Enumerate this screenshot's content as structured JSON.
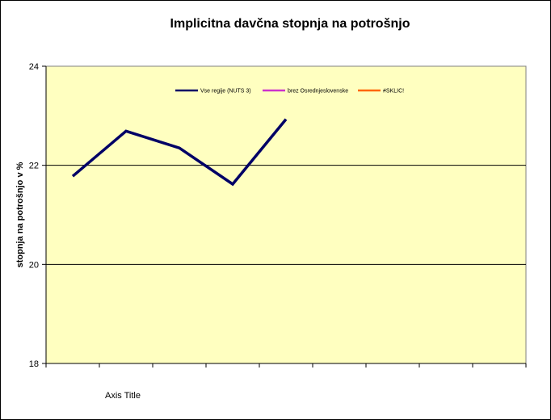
{
  "chart_data": {
    "type": "line",
    "title": "Implicitna davčna stopnja na potrošnjo",
    "ylabel": "stopnja na potrošnjo v %",
    "xlabel": "Axis Title",
    "ylim": [
      18,
      24
    ],
    "yticks": [
      18,
      20,
      22,
      24
    ],
    "n_categories": 9,
    "plot_background": "#ffffc0",
    "grid": true,
    "legend_position": "top",
    "series": [
      {
        "name": "Vse regije (NUTS 3)",
        "color": "#000066",
        "values": [
          21.78,
          22.69,
          22.35,
          21.62,
          22.93,
          null,
          null,
          null,
          null
        ]
      },
      {
        "name": "brez Osrednjeslovenske",
        "color": "#cc33cc",
        "values": [
          null,
          null,
          null,
          null,
          null,
          null,
          null,
          null,
          null
        ]
      },
      {
        "name": "#SKLIC!",
        "color": "#ff6600",
        "values": [
          null,
          null,
          null,
          null,
          null,
          null,
          null,
          null,
          null
        ]
      }
    ]
  }
}
